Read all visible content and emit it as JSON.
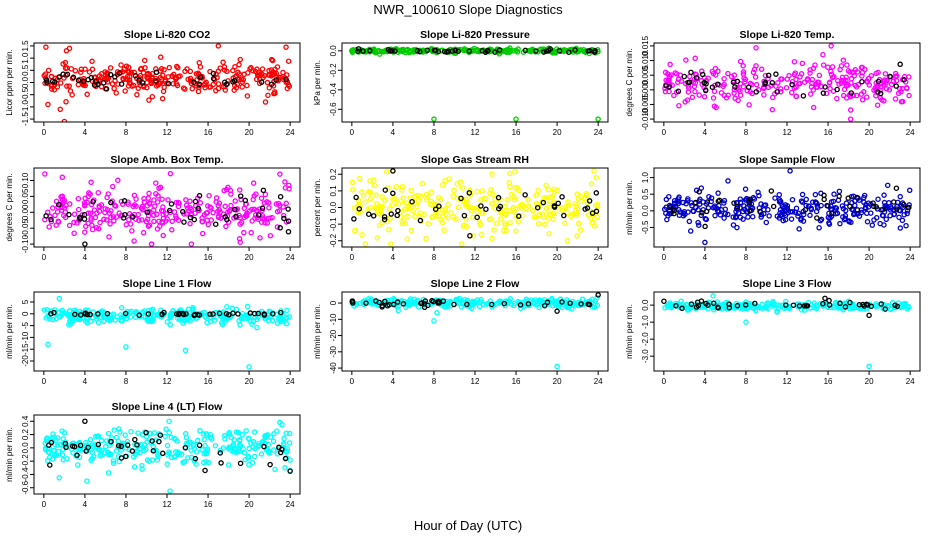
{
  "figure": {
    "title": "NWR_100610  Slope Diagnostics",
    "xlabel": "Hour of Day (UTC)"
  },
  "chart_data": [
    {
      "type": "scatter",
      "title": "Slope Li-820 CO2",
      "ylabel": "Licor ppm per min.",
      "xlim": [
        0,
        24
      ],
      "ylim": [
        -1.5,
        1.5
      ],
      "xticks": [
        0,
        4,
        8,
        12,
        16,
        20,
        24
      ],
      "yticks": [
        -1.5,
        -1.0,
        -0.5,
        0.0,
        0.5,
        1.0,
        1.5
      ],
      "ytick_labels": [
        "-1.5",
        "-1.0",
        "-0.5",
        "0.0",
        "0.5",
        "1.0",
        "1.5"
      ],
      "series": [
        {
          "color": "#ff0000",
          "center": 0.15,
          "spread": 0.32,
          "count": 300,
          "points": [
            [
              0.2,
              1.45
            ],
            [
              2.2,
              1.3
            ],
            [
              2.5,
              1.4
            ],
            [
              17.0,
              1.5
            ],
            [
              23.6,
              1.45
            ],
            [
              0.4,
              -0.9
            ],
            [
              1.6,
              -1.1
            ],
            [
              2.0,
              -1.6
            ],
            [
              22.3,
              0.9
            ],
            [
              21.6,
              -0.8
            ]
          ]
        },
        {
          "color": "#000000",
          "center": 0.1,
          "spread": 0.14,
          "count": 40,
          "points": []
        }
      ]
    },
    {
      "type": "scatter",
      "title": "Slope Li-820 Pressure",
      "ylabel": "kPa per min.",
      "xlim": [
        0,
        24
      ],
      "ylim": [
        -0.7,
        0.05
      ],
      "xticks": [
        0,
        4,
        8,
        12,
        16,
        20,
        24
      ],
      "yticks": [
        -0.6,
        -0.4,
        -0.2,
        0.0
      ],
      "ytick_labels": [
        "-0.6",
        "-0.4",
        "-0.2",
        "0.0"
      ],
      "series": [
        {
          "color": "#00cc00",
          "center": 0.0,
          "spread": 0.01,
          "count": 260,
          "points": [
            [
              8.0,
              -0.7
            ],
            [
              16.0,
              -0.7
            ],
            [
              24.0,
              -0.7
            ]
          ]
        },
        {
          "color": "#000000",
          "center": 0.0,
          "spread": 0.008,
          "count": 40,
          "points": []
        }
      ]
    },
    {
      "type": "scatter",
      "title": "Slope Li-820 Temp.",
      "ylabel": "degrees C per min.",
      "xlim": [
        0,
        24
      ],
      "ylim": [
        -0.01,
        0.015
      ],
      "xticks": [
        0,
        4,
        8,
        12,
        16,
        20,
        24
      ],
      "yticks": [
        -0.01,
        -0.005,
        0.0,
        0.005,
        0.01,
        0.015
      ],
      "ytick_labels": [
        "-0.010",
        "-0.005",
        "0.000",
        "0.005",
        "0.010",
        "0.015"
      ],
      "series": [
        {
          "color": "#ff00ff",
          "center": 0.002,
          "spread": 0.0035,
          "count": 280,
          "points": [
            [
              16.3,
              0.015
            ],
            [
              18.2,
              -0.01
            ],
            [
              15.5,
              0.012
            ]
          ]
        },
        {
          "color": "#000000",
          "center": 0.002,
          "spread": 0.0025,
          "count": 40,
          "points": []
        }
      ]
    },
    {
      "type": "scatter",
      "title": "Slope Amb. Box Temp.",
      "ylabel": "degrees C per min.",
      "xlim": [
        0,
        24
      ],
      "ylim": [
        -0.1,
        0.13
      ],
      "xticks": [
        0,
        4,
        8,
        12,
        16,
        20,
        24
      ],
      "yticks": [
        -0.1,
        -0.05,
        0.0,
        0.05,
        0.1
      ],
      "ytick_labels": [
        "-0.10",
        "-0.05",
        "0.00",
        "0.05",
        "0.10"
      ],
      "series": [
        {
          "color": "#ff00ff",
          "center": 0.0,
          "spread": 0.04,
          "count": 300,
          "points": [
            [
              23.0,
              0.12
            ],
            [
              1.8,
              0.11
            ]
          ]
        },
        {
          "color": "#000000",
          "center": 0.0,
          "spread": 0.03,
          "count": 40,
          "points": [
            [
              4.0,
              -0.1
            ]
          ]
        }
      ]
    },
    {
      "type": "scatter",
      "title": "Slope Gas Stream RH",
      "ylabel": "percent per min.",
      "xlim": [
        0,
        24
      ],
      "ylim": [
        -0.22,
        0.22
      ],
      "xticks": [
        0,
        4,
        8,
        12,
        16,
        20,
        24
      ],
      "yticks": [
        -0.2,
        -0.1,
        0.0,
        0.1,
        0.2
      ],
      "ytick_labels": [
        "-0.2",
        "-0.1",
        "0.0",
        "0.1",
        "0.2"
      ],
      "series": [
        {
          "color": "#ffff00",
          "center": 0.0,
          "spread": 0.085,
          "count": 300,
          "points": [
            [
              4.0,
              0.22
            ],
            [
              23.6,
              0.22
            ],
            [
              21.0,
              -0.2
            ]
          ]
        },
        {
          "color": "#000000",
          "center": 0.0,
          "spread": 0.06,
          "count": 40,
          "points": [
            [
              4.0,
              0.22
            ],
            [
              11.5,
              -0.17
            ]
          ]
        }
      ]
    },
    {
      "type": "scatter",
      "title": "Slope Sample Flow",
      "ylabel": "ml/min per min.",
      "xlim": [
        0,
        24
      ],
      "ylim": [
        -1.0,
        1.2
      ],
      "xticks": [
        0,
        4,
        8,
        12,
        16,
        20,
        24
      ],
      "yticks": [
        -0.5,
        0.0,
        0.5,
        1.0
      ],
      "ytick_labels": [
        "-0.5",
        "0.0",
        "0.5",
        "1.0"
      ],
      "series": [
        {
          "color": "#0000cc",
          "center": 0.05,
          "spread": 0.25,
          "count": 300,
          "points": [
            [
              12.3,
              1.2
            ],
            [
              4.0,
              -0.95
            ]
          ]
        },
        {
          "color": "#000000",
          "center": 0.15,
          "spread": 0.2,
          "count": 40,
          "points": []
        }
      ]
    },
    {
      "type": "scatter",
      "title": "Slope Line 1 Flow",
      "ylabel": "ml/min per min.",
      "xlim": [
        0,
        24
      ],
      "ylim": [
        -23,
        8
      ],
      "xticks": [
        0,
        4,
        8,
        12,
        16,
        20,
        24
      ],
      "yticks": [
        -20,
        -15,
        -10,
        -5,
        0,
        5
      ],
      "ytick_labels": [
        "-20",
        "-15",
        "-10",
        "-5",
        "0",
        "5"
      ],
      "series": [
        {
          "color": "#00ffff",
          "center": -1.0,
          "spread": 1.6,
          "count": 300,
          "points": [
            [
              20.0,
              -22.5
            ],
            [
              8.0,
              -14.0
            ],
            [
              13.8,
              -15.5
            ],
            [
              0.4,
              -13.0
            ],
            [
              1.5,
              6.5
            ]
          ]
        },
        {
          "color": "#000000",
          "center": 0.0,
          "spread": 0.35,
          "count": 40,
          "points": []
        }
      ]
    },
    {
      "type": "scatter",
      "title": "Slope Line 2 Flow",
      "ylabel": "ml/min per min.",
      "xlim": [
        0,
        24
      ],
      "ylim": [
        -40,
        5
      ],
      "xticks": [
        0,
        4,
        8,
        12,
        16,
        20,
        24
      ],
      "yticks": [
        -40,
        -30,
        -20,
        -10,
        0
      ],
      "ytick_labels": [
        "-40",
        "-30",
        "-20",
        "-10",
        "0"
      ],
      "series": [
        {
          "color": "#00ffff",
          "center": 0.0,
          "spread": 1.3,
          "count": 260,
          "points": [
            [
              20.0,
              -39.0
            ],
            [
              8.0,
              -11.0
            ],
            [
              8.3,
              -6.0
            ]
          ]
        },
        {
          "color": "#000000",
          "center": 0.0,
          "spread": 0.9,
          "count": 40,
          "points": [
            [
              24.0,
              5.0
            ],
            [
              20.0,
              -5.0
            ]
          ]
        }
      ]
    },
    {
      "type": "scatter",
      "title": "Slope Line 3 Flow",
      "ylabel": "ml/min per min.",
      "xlim": [
        0,
        24
      ],
      "ylim": [
        -3.7,
        0.6
      ],
      "xticks": [
        0,
        4,
        8,
        12,
        16,
        20,
        24
      ],
      "yticks": [
        -3.0,
        -2.0,
        -1.0,
        0.0
      ],
      "ytick_labels": [
        "-3.0",
        "-2.0",
        "-1.0",
        "0.0"
      ],
      "series": [
        {
          "color": "#00ffff",
          "center": -0.05,
          "spread": 0.12,
          "count": 260,
          "points": [
            [
              20.0,
              -3.6
            ],
            [
              8.0,
              -1.0
            ],
            [
              4.8,
              0.55
            ]
          ]
        },
        {
          "color": "#000000",
          "center": 0.0,
          "spread": 0.12,
          "count": 40,
          "points": [
            [
              20.0,
              -0.6
            ],
            [
              15.7,
              0.4
            ]
          ]
        }
      ]
    },
    {
      "type": "scatter",
      "title": "Slope Line 4 (LT) Flow",
      "ylabel": "ml/min per min.",
      "xlim": [
        0,
        24
      ],
      "ylim": [
        -0.65,
        0.45
      ],
      "xticks": [
        0,
        4,
        8,
        12,
        16,
        20,
        24
      ],
      "yticks": [
        -0.6,
        -0.4,
        -0.2,
        0.0,
        0.2,
        0.4
      ],
      "ytick_labels": [
        "-0.6",
        "-0.4",
        "-0.2",
        "0.0",
        "0.2",
        "0.4"
      ],
      "series": [
        {
          "color": "#00ffff",
          "center": 0.0,
          "spread": 0.14,
          "count": 300,
          "points": [
            [
              12.3,
              -0.65
            ],
            [
              1.5,
              -0.45
            ],
            [
              4.2,
              -0.5
            ],
            [
              23.5,
              -0.3
            ],
            [
              23.2,
              0.35
            ]
          ]
        },
        {
          "color": "#000000",
          "center": -0.05,
          "spread": 0.12,
          "count": 40,
          "points": [
            [
              4.0,
              0.4
            ],
            [
              24.0,
              -0.35
            ]
          ]
        }
      ]
    }
  ]
}
